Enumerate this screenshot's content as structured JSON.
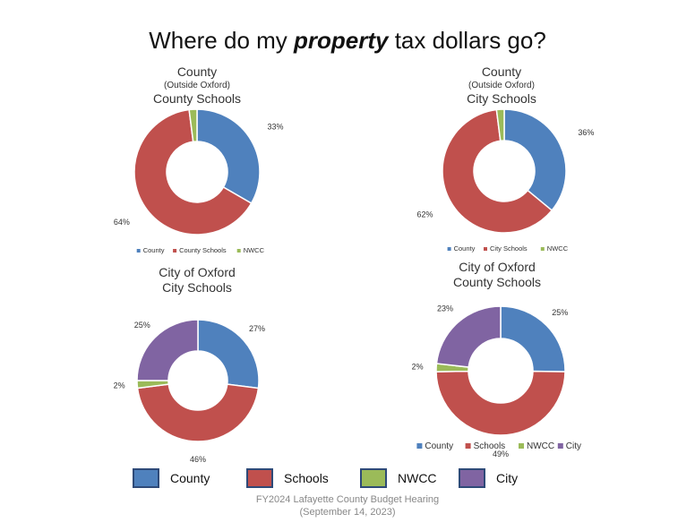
{
  "title": {
    "before": "Where do my ",
    "emph": "property",
    "after": " tax dollars go?"
  },
  "colors": {
    "County": "#4f81bd",
    "Schools": "#c0504d",
    "NWCC": "#9bbb59",
    "City": "#8064a2"
  },
  "chart_data": [
    {
      "type": "pie",
      "title_lines": [
        "County",
        "(Outside Oxford)",
        "County Schools"
      ],
      "categories": [
        "County",
        "County Schools",
        "NWCC"
      ],
      "values": [
        33,
        64,
        2
      ],
      "labels": [
        "33%",
        "64%",
        "2%"
      ],
      "legend": [
        "County",
        "County Schools",
        "NWCC"
      ],
      "legend_position": "bottom"
    },
    {
      "type": "pie",
      "title_lines": [
        "County",
        "(Outside Oxford)",
        "City Schools"
      ],
      "categories": [
        "County",
        "City Schools",
        "NWCC"
      ],
      "values": [
        36,
        62,
        2
      ],
      "labels": [
        "36%",
        "62%",
        "2%"
      ],
      "legend": [
        "County",
        "City Schools",
        "NWCC"
      ],
      "legend_position": "bottom"
    },
    {
      "type": "pie",
      "title_lines": [
        "City of Oxford",
        "City Schools"
      ],
      "categories": [
        "County",
        "Schools",
        "NWCC",
        "City"
      ],
      "values": [
        27,
        46,
        2,
        25
      ],
      "labels": [
        "27%",
        "46%",
        "2%",
        "25%"
      ],
      "legend": [],
      "legend_position": "none"
    },
    {
      "type": "pie",
      "title_lines": [
        "City of Oxford",
        "County Schools"
      ],
      "categories": [
        "County",
        "Schools",
        "NWCC",
        "City"
      ],
      "values": [
        25,
        49,
        2,
        23
      ],
      "labels": [
        "25%",
        "49%",
        "2%",
        "23%"
      ],
      "legend": [
        "County",
        "Schools",
        "NWCC",
        "City"
      ],
      "legend_position": "bottom"
    }
  ],
  "legend": [
    {
      "label": "County",
      "color": "#4f81bd"
    },
    {
      "label": "Schools",
      "color": "#c0504d"
    },
    {
      "label": "NWCC",
      "color": "#9bbb59"
    },
    {
      "label": "City",
      "color": "#8064a2"
    }
  ],
  "footer": {
    "line1": "FY2024 Lafayette County Budget Hearing",
    "line2": "(September 14, 2023)"
  }
}
